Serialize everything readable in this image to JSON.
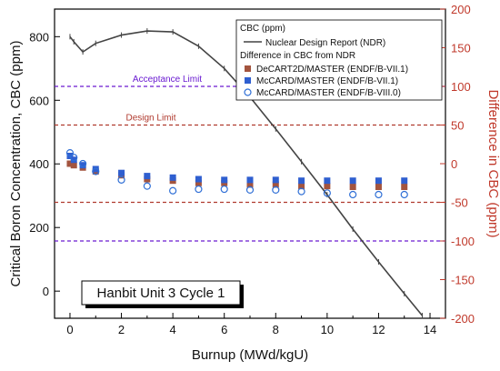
{
  "chart_data": {
    "type": "scatter",
    "xlabel": "Burnup (MWd/kgU)",
    "ylabel_left": "Critical Boron Concentration, CBC (ppm)",
    "ylabel_right": "Difference in CBC (ppm)",
    "xlim": [
      -0.6,
      14.6
    ],
    "ylim_left": [
      -85.3,
      886.7
    ],
    "ylim_right": [
      -200,
      200
    ],
    "x_ticks": [
      0,
      2,
      4,
      6,
      8,
      10,
      12,
      14
    ],
    "y_ticks_left": [
      0,
      200,
      400,
      600,
      800
    ],
    "y_ticks_right": [
      -200,
      -150,
      -100,
      -50,
      0,
      50,
      100,
      150,
      200
    ],
    "grid": false,
    "legend_placement": "top-right",
    "annotation_box": "Hanbit Unit 3 Cycle 1",
    "legend": {
      "header1": "CBC (ppm)",
      "header2": "Difference in CBC from NDR"
    },
    "reference_lines": [
      {
        "label": "Acceptance Limit",
        "y_right": 100,
        "color": "#6a1bd1"
      },
      {
        "label": "",
        "y_right": -100,
        "color": "#6a1bd1"
      },
      {
        "label": "Design Limit",
        "y_right": 50,
        "color": "#b03a2e"
      },
      {
        "label": "",
        "y_right": -50,
        "color": "#b03a2e"
      }
    ],
    "series": [
      {
        "name": "Nuclear Design Report (NDR)",
        "axis": "left",
        "kind": "line",
        "color": "#444444",
        "x": [
          0,
          0.15,
          0.5,
          1,
          2,
          3,
          4,
          5,
          6,
          7,
          8,
          9,
          10,
          11,
          12,
          13,
          13.7
        ],
        "y": [
          800,
          784,
          752,
          779,
          805,
          818,
          815,
          770,
          700,
          610,
          510,
          407,
          303,
          195,
          92,
          -8,
          -77
        ]
      },
      {
        "name": "DeCART2D/MASTER (ENDF/B-VII.1)",
        "axis": "right",
        "kind": "square",
        "color": "#a3543e",
        "x": [
          0,
          0.15,
          0.5,
          1,
          2,
          3,
          4,
          5,
          6,
          7,
          8,
          9,
          10,
          11,
          12,
          13
        ],
        "y": [
          0,
          -2,
          -5,
          -10,
          -15,
          -20,
          -22,
          -25,
          -25,
          -27,
          -27,
          -29,
          -29,
          -30,
          -30,
          -30
        ]
      },
      {
        "name": "McCARD/MASTER (ENDF/B-VII.1)",
        "axis": "right",
        "kind": "square",
        "color": "#2f5fd0",
        "x": [
          0,
          0.15,
          0.5,
          1,
          2,
          3,
          4,
          5,
          6,
          7,
          8,
          9,
          10,
          11,
          12,
          13
        ],
        "y": [
          10,
          5,
          -2,
          -7,
          -12,
          -16,
          -18,
          -20,
          -21,
          -21,
          -21,
          -22,
          -22,
          -22,
          -22,
          -22
        ]
      },
      {
        "name": "McCARD/MASTER (ENDF/B-VIII.0)",
        "axis": "right",
        "kind": "circle",
        "color": "#2f6fd6",
        "x": [
          0,
          0.15,
          0.5,
          1,
          2,
          3,
          4,
          5,
          6,
          7,
          8,
          9,
          10,
          11,
          12,
          13
        ],
        "y": [
          14,
          8,
          0,
          -10,
          -21,
          -29,
          -35,
          -33,
          -33,
          -34,
          -34,
          -36,
          -38,
          -40,
          -40,
          -40
        ]
      }
    ]
  }
}
